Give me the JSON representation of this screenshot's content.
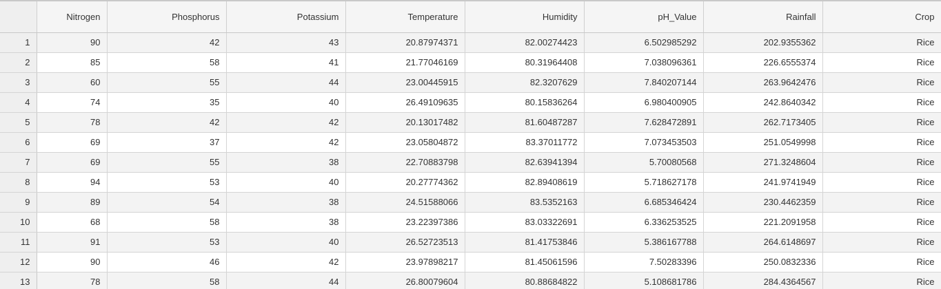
{
  "table": {
    "columns": [
      "",
      "Nitrogen",
      "Phosphorus",
      "Potassium",
      "Temperature",
      "Humidity",
      "pH_Value",
      "Rainfall",
      "Crop"
    ],
    "rows": [
      [
        "1",
        "90",
        "42",
        "43",
        "20.87974371",
        "82.00274423",
        "6.502985292",
        "202.9355362",
        "Rice"
      ],
      [
        "2",
        "85",
        "58",
        "41",
        "21.77046169",
        "80.31964408",
        "7.038096361",
        "226.6555374",
        "Rice"
      ],
      [
        "3",
        "60",
        "55",
        "44",
        "23.00445915",
        "82.3207629",
        "7.840207144",
        "263.9642476",
        "Rice"
      ],
      [
        "4",
        "74",
        "35",
        "40",
        "26.49109635",
        "80.15836264",
        "6.980400905",
        "242.8640342",
        "Rice"
      ],
      [
        "5",
        "78",
        "42",
        "42",
        "20.13017482",
        "81.60487287",
        "7.628472891",
        "262.7173405",
        "Rice"
      ],
      [
        "6",
        "69",
        "37",
        "42",
        "23.05804872",
        "83.37011772",
        "7.073453503",
        "251.0549998",
        "Rice"
      ],
      [
        "7",
        "69",
        "55",
        "38",
        "22.70883798",
        "82.63941394",
        "5.70080568",
        "271.3248604",
        "Rice"
      ],
      [
        "8",
        "94",
        "53",
        "40",
        "20.27774362",
        "82.89408619",
        "5.718627178",
        "241.9741949",
        "Rice"
      ],
      [
        "9",
        "89",
        "54",
        "38",
        "24.51588066",
        "83.5352163",
        "6.685346424",
        "230.4462359",
        "Rice"
      ],
      [
        "10",
        "68",
        "58",
        "38",
        "23.22397386",
        "83.03322691",
        "6.336253525",
        "221.2091958",
        "Rice"
      ],
      [
        "11",
        "91",
        "53",
        "40",
        "26.52723513",
        "81.41753846",
        "5.386167788",
        "264.6148697",
        "Rice"
      ],
      [
        "12",
        "90",
        "46",
        "42",
        "23.97898217",
        "81.45061596",
        "7.50283396",
        "250.0832336",
        "Rice"
      ],
      [
        "13",
        "78",
        "58",
        "44",
        "26.80079604",
        "80.88684822",
        "5.108681786",
        "284.4364567",
        "Rice"
      ]
    ]
  },
  "colors": {
    "header_bg": "#f5f5f5",
    "row_stripe": "#f3f3f3",
    "row_number_bg": "#efefef",
    "grid_line": "#d4d4d4"
  }
}
